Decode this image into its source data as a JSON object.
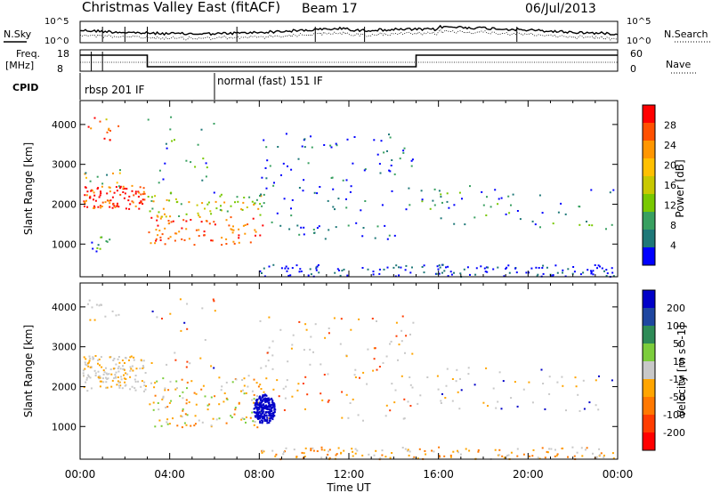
{
  "header": {
    "title": "Christmas Valley East (fitACF)",
    "beam": "Beam 17",
    "date": "06/Jul/2013"
  },
  "noise_panel": {
    "left_label": "N.Sky",
    "right_label": "N.Search",
    "ticks": [
      "10^5",
      "10^0"
    ]
  },
  "freq_panel": {
    "left_label_1": "Freq.",
    "left_label_2": "[MHz]",
    "left_ticks": [
      "18",
      "8"
    ],
    "right_ticks": [
      "60",
      "0"
    ],
    "right_label": "Nave"
  },
  "cpid_panel": {
    "label": "CPID",
    "modes": [
      {
        "start_hour": 0,
        "label": "rbsp 201 IF"
      },
      {
        "start_hour": 6,
        "label": "normal (fast) 151 IF"
      }
    ]
  },
  "chart_data": [
    {
      "type": "heatmap",
      "name": "Power",
      "ylabel": "Slant Range [km]",
      "xlabel": "Time UT",
      "x_ticks": [
        "00:00",
        "04:00",
        "08:00",
        "12:00",
        "16:00",
        "20:00",
        "00:00"
      ],
      "xlim_hours": [
        0,
        24
      ],
      "ylim": [
        180,
        4600
      ],
      "y_ticks": [
        1000,
        2000,
        3000,
        4000
      ],
      "colorbar": {
        "label": "Power [dB]",
        "ticks": [
          "28",
          "24",
          "20",
          "16",
          "12",
          "8",
          "4"
        ],
        "colors": [
          "#ff0000",
          "#ff5000",
          "#ff9600",
          "#ffc000",
          "#c8c800",
          "#78c800",
          "#38a060",
          "#1e7878",
          "#0000ff"
        ]
      }
    },
    {
      "type": "heatmap",
      "name": "Velocity",
      "ylabel": "Slant Range [km]",
      "xlabel": "Time UT",
      "x_ticks": [
        "00:00",
        "04:00",
        "08:00",
        "12:00",
        "16:00",
        "20:00",
        "00:00"
      ],
      "xlim_hours": [
        0,
        24
      ],
      "ylim": [
        180,
        4600
      ],
      "y_ticks": [
        1000,
        2000,
        3000,
        4000
      ],
      "colorbar": {
        "label": "Velocity [m s^-1]",
        "ticks": [
          "200",
          "100",
          "50",
          "15",
          "-15",
          "-50",
          "-100",
          "-200"
        ],
        "colors": [
          "#0000c8",
          "#1e46a0",
          "#2e8b57",
          "#7ccd3c",
          "#c8c8c8",
          "#ffa500",
          "#ff7800",
          "#ff3c00",
          "#ff0000"
        ]
      }
    }
  ],
  "axis": {
    "xlabel": "Time UT"
  },
  "colors": {
    "ground_scatter": "#c8c8c8",
    "axis": "#000000"
  }
}
